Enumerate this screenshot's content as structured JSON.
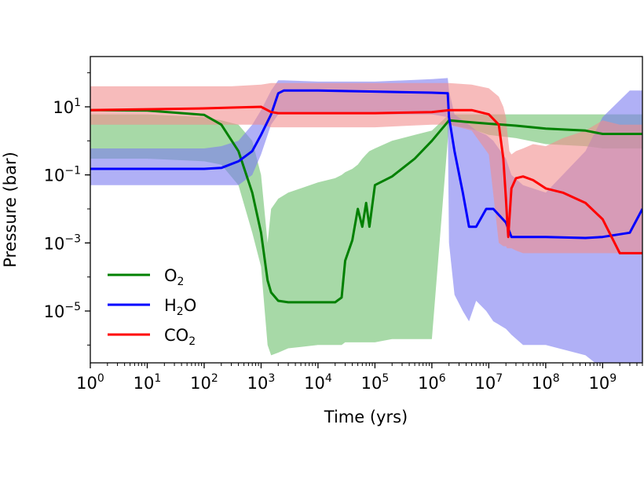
{
  "chart_data": {
    "type": "line",
    "xlabel": "Time (yrs)",
    "ylabel": "Pressure (bar)",
    "xscale": "log",
    "yscale": "log",
    "xlim": [
      1,
      5000000000
    ],
    "ylim": [
      3e-07,
      300
    ],
    "grid": false,
    "legend_position": "lower-left",
    "x_ticks": [
      {
        "value": 1,
        "base": "10",
        "exp": "0"
      },
      {
        "value": 10,
        "base": "10",
        "exp": "1"
      },
      {
        "value": 100,
        "base": "10",
        "exp": "2"
      },
      {
        "value": 1000,
        "base": "10",
        "exp": "3"
      },
      {
        "value": 10000,
        "base": "10",
        "exp": "4"
      },
      {
        "value": 100000,
        "base": "10",
        "exp": "5"
      },
      {
        "value": 1000000,
        "base": "10",
        "exp": "6"
      },
      {
        "value": 10000000,
        "base": "10",
        "exp": "7"
      },
      {
        "value": 100000000,
        "base": "10",
        "exp": "8"
      },
      {
        "value": 1000000000,
        "base": "10",
        "exp": "9"
      }
    ],
    "y_ticks": [
      {
        "value": 10,
        "base": "10",
        "exp": "1"
      },
      {
        "value": 0.1,
        "base": "10",
        "exp": "−1"
      },
      {
        "value": 0.001,
        "base": "10",
        "exp": "−3"
      },
      {
        "value": 1e-05,
        "base": "10",
        "exp": "−5"
      }
    ],
    "series": [
      {
        "name_main": "O",
        "name_sub": "2",
        "color": "#008000",
        "band_color": "#6dbf6d",
        "x": [
          1,
          10,
          100,
          200,
          400,
          700,
          1000,
          1300,
          1500,
          2000,
          3000,
          10000,
          20000,
          26000,
          30000,
          40000,
          50000,
          60000,
          70000,
          80000,
          100000,
          200000,
          500000,
          1000000,
          2000000,
          5000000,
          10000000,
          30000000,
          100000000,
          500000000,
          1000000000,
          5000000000
        ],
        "y": [
          8,
          7.8,
          5.8,
          3,
          0.5,
          0.03,
          0.002,
          8e-05,
          3.5e-05,
          2e-05,
          1.8e-05,
          1.8e-05,
          1.8e-05,
          2.5e-05,
          0.0003,
          0.0012,
          0.01,
          0.003,
          0.015,
          0.003,
          0.05,
          0.09,
          0.3,
          1.0,
          4.0,
          3.5,
          3.2,
          2.8,
          2.3,
          2.0,
          1.6,
          1.6
        ],
        "band_upper": [
          6,
          6,
          5,
          4,
          3,
          1,
          0.1,
          0.001,
          0.01,
          0.02,
          0.03,
          0.06,
          0.08,
          0.1,
          0.12,
          0.15,
          0.2,
          0.3,
          0.4,
          0.5,
          0.6,
          1.0,
          1.5,
          2.0,
          6,
          6,
          6,
          6,
          6,
          6,
          6,
          6
        ],
        "band_lower": [
          0.3,
          0.3,
          0.25,
          0.2,
          0.05,
          0.002,
          0.0002,
          1e-06,
          5e-07,
          6e-07,
          8e-07,
          1e-06,
          1e-06,
          1e-06,
          1.2e-06,
          1.2e-06,
          1.2e-06,
          1.2e-06,
          1.2e-06,
          1.2e-06,
          1.2e-06,
          1.5e-06,
          1.5e-06,
          1.5e-06,
          3,
          2.2,
          1.5,
          1.2,
          0.8,
          0.7,
          0.6,
          0.6
        ]
      },
      {
        "name_main": "H",
        "name_sub": "2",
        "name_tail": "O",
        "color": "#0000ff",
        "band_color": "#7b7bf0",
        "x": [
          1,
          10,
          100,
          200,
          400,
          700,
          1000,
          1500,
          2000,
          2500,
          10000,
          100000,
          1000000,
          1900000,
          2000000,
          2500000,
          3500000,
          4500000,
          6000000,
          9000000,
          12000000,
          20000000,
          25000000,
          40000000,
          100000000,
          500000000,
          1000000000,
          3000000000,
          5000000000
        ],
        "y": [
          0.15,
          0.15,
          0.15,
          0.16,
          0.25,
          0.5,
          1.5,
          6,
          25,
          30,
          30,
          28,
          26,
          25,
          5,
          0.5,
          0.03,
          0.003,
          0.003,
          0.01,
          0.01,
          0.004,
          0.0015,
          0.0015,
          0.0015,
          0.0014,
          0.0015,
          0.002,
          0.01
        ],
        "band_upper": [
          0.6,
          0.6,
          0.6,
          0.7,
          1.0,
          3,
          8,
          30,
          60,
          60,
          55,
          55,
          65,
          70,
          30,
          6,
          4,
          3,
          2,
          1.5,
          1.0,
          0.3,
          0.1,
          0.05,
          0.03,
          0.5,
          5,
          30,
          30
        ],
        "band_lower": [
          0.05,
          0.05,
          0.05,
          0.05,
          0.05,
          0.1,
          0.4,
          3,
          6,
          6,
          6,
          6,
          6,
          5,
          0.001,
          3e-05,
          1e-05,
          5e-06,
          2e-05,
          1e-05,
          5e-06,
          3e-06,
          2e-06,
          1e-06,
          1e-06,
          5e-07,
          2e-07,
          2e-07,
          2e-07
        ]
      },
      {
        "name_main": "CO",
        "name_sub": "2",
        "color": "#ff0000",
        "band_color": "#f28e8e",
        "x": [
          1,
          10,
          100,
          300,
          1000,
          1500,
          2000,
          10000,
          100000,
          1000000,
          2000000,
          5000000,
          10000000,
          15000000,
          18000000,
          20000000,
          21000000,
          22000000,
          23000000,
          25000000,
          30000000,
          40000000,
          60000000,
          100000000,
          200000000,
          500000000,
          1000000000,
          2000000000,
          5000000000
        ],
        "y": [
          8,
          8.5,
          9,
          9.5,
          10,
          7,
          6.5,
          6.5,
          6.5,
          7,
          8,
          8,
          6,
          3,
          0.3,
          0.02,
          0.005,
          0.0015,
          0.005,
          0.04,
          0.08,
          0.09,
          0.07,
          0.04,
          0.03,
          0.015,
          0.005,
          0.0005,
          0.0005
        ],
        "band_upper": [
          40,
          40,
          40,
          40,
          45,
          50,
          50,
          50,
          50,
          50,
          50,
          45,
          35,
          20,
          10,
          5,
          2,
          1,
          0.5,
          0.4,
          0.5,
          0.6,
          0.8,
          0.7,
          1.2,
          2,
          4,
          3,
          3
        ],
        "band_lower": [
          3,
          3,
          3,
          3,
          3,
          2.5,
          2.5,
          2.5,
          2.5,
          3,
          3,
          2,
          0.4,
          0.001,
          0.0008,
          0.0008,
          0.0007,
          0.0007,
          0.0007,
          0.0007,
          0.0006,
          0.0005,
          0.0005,
          0.0005,
          0.0005,
          0.0005,
          0.0005,
          0.0005,
          0.0005
        ]
      }
    ]
  }
}
